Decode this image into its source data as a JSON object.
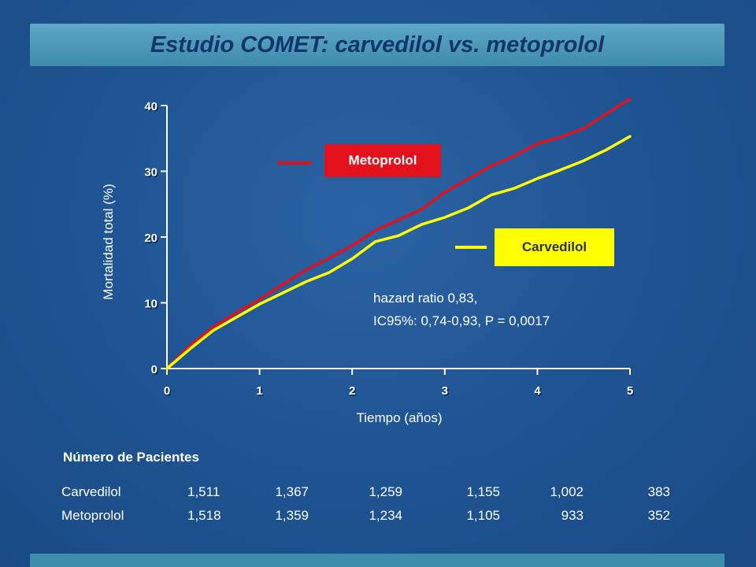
{
  "slide": {
    "title": "Estudio COMET: carvedilol vs. metoprolol"
  },
  "colors": {
    "background": "#1d4f8c",
    "metoprolol": "#e2111c",
    "carvedilol": "#ffff00",
    "title_bar": "#4a9bbd",
    "title_text": "#12356b"
  },
  "chart_data": {
    "type": "line",
    "xlabel": "Tiempo (años)",
    "ylabel": "Mortalidad total (%)",
    "xlim": [
      0,
      5
    ],
    "ylim": [
      0,
      40
    ],
    "xticks": [
      "0",
      "1",
      "2",
      "3",
      "4",
      "5"
    ],
    "yticks": [
      "0",
      "10",
      "20",
      "30",
      "40"
    ],
    "grid": false,
    "series": [
      {
        "name": "Metoprolol",
        "color": "#e2111c",
        "x": [
          0,
          0.25,
          0.5,
          0.75,
          1,
          1.25,
          1.5,
          1.75,
          2,
          2.25,
          2.5,
          2.75,
          3,
          3.25,
          3.5,
          3.75,
          4,
          4.25,
          4.5,
          4.75,
          5
        ],
        "y": [
          0,
          3.5,
          6.3,
          8.5,
          10.5,
          12.8,
          15.0,
          16.8,
          18.7,
          21.0,
          22.6,
          24.2,
          26.8,
          28.8,
          30.8,
          32.3,
          34.2,
          35.2,
          36.5,
          38.8,
          41.0
        ]
      },
      {
        "name": "Carvedilol",
        "color": "#ffff00",
        "x": [
          0,
          0.25,
          0.5,
          0.75,
          1,
          1.25,
          1.5,
          1.75,
          2,
          2.25,
          2.5,
          2.75,
          3,
          3.25,
          3.5,
          3.75,
          4,
          4.25,
          4.5,
          4.75,
          5
        ],
        "y": [
          0,
          3.0,
          5.8,
          7.8,
          9.8,
          11.5,
          13.2,
          14.6,
          16.7,
          19.3,
          20.2,
          21.9,
          23.0,
          24.4,
          26.4,
          27.4,
          28.9,
          30.2,
          31.6,
          33.3,
          35.3
        ]
      }
    ],
    "legend": [
      "Metoprolol",
      "Carvedilol"
    ],
    "annotation": [
      "hazard ratio 0,83,",
      "IC95%: 0,74-0,93, P = 0,0017"
    ]
  },
  "patients": {
    "title": "Número de Pacientes",
    "rows": [
      {
        "name": "Carvedilol",
        "values": [
          "1,511",
          "1,367",
          "1,259",
          "1,155",
          "1,002",
          "383"
        ]
      },
      {
        "name": "Metoprolol",
        "values": [
          "1,518",
          "1,359",
          "1,234",
          "1,105",
          "933",
          "352"
        ]
      }
    ]
  }
}
